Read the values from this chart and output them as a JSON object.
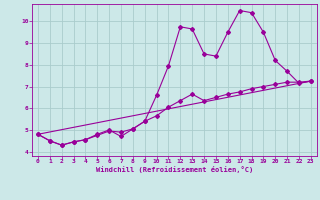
{
  "xlabel": "Windchill (Refroidissement éolien,°C)",
  "background_color": "#cce8e8",
  "line_color": "#990099",
  "grid_color": "#aacccc",
  "xlim": [
    -0.5,
    23.5
  ],
  "ylim": [
    3.8,
    10.8
  ],
  "yticks": [
    4,
    5,
    6,
    7,
    8,
    9,
    10
  ],
  "xticks": [
    0,
    1,
    2,
    3,
    4,
    5,
    6,
    7,
    8,
    9,
    10,
    11,
    12,
    13,
    14,
    15,
    16,
    17,
    18,
    19,
    20,
    21,
    22,
    23
  ],
  "series": [
    {
      "x": [
        0,
        1,
        2,
        3,
        4,
        5,
        6,
        7,
        8,
        9,
        10,
        11,
        12,
        13,
        14,
        15,
        16,
        17,
        18,
        19,
        20,
        21,
        22,
        23
      ],
      "y": [
        4.8,
        4.5,
        4.3,
        4.45,
        4.55,
        4.8,
        5.0,
        4.7,
        5.05,
        5.4,
        6.6,
        7.95,
        9.75,
        9.65,
        8.5,
        8.4,
        9.5,
        10.5,
        10.4,
        9.5,
        8.2,
        7.7,
        7.15,
        7.25
      ],
      "marker": true
    },
    {
      "x": [
        0,
        1,
        2,
        3,
        4,
        5,
        6,
        7,
        8,
        9,
        10,
        11,
        12,
        13,
        14,
        15,
        16,
        17,
        18,
        19,
        20,
        21,
        22,
        23
      ],
      "y": [
        4.8,
        4.5,
        4.3,
        4.45,
        4.55,
        4.75,
        4.95,
        4.9,
        5.05,
        5.4,
        5.65,
        6.05,
        6.35,
        6.65,
        6.35,
        6.5,
        6.65,
        6.75,
        6.9,
        7.0,
        7.1,
        7.2,
        7.2,
        7.25
      ],
      "marker": true
    },
    {
      "x": [
        0,
        23
      ],
      "y": [
        4.8,
        7.25
      ],
      "marker": false
    }
  ]
}
